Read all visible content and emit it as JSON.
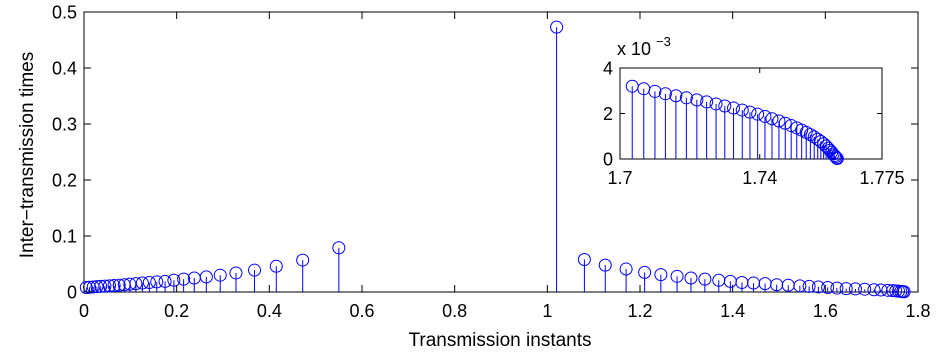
{
  "chart_data": [
    {
      "type": "stem",
      "title": "",
      "xlabel": "Transmission instants",
      "ylabel": "Inter−transmission times",
      "xlim": [
        0,
        1.8
      ],
      "ylim": [
        0,
        0.5
      ],
      "xticks": [
        "0",
        "0.2",
        "0.4",
        "0.6",
        "0.8",
        "1",
        "1.2",
        "1.4",
        "1.6",
        "1.8"
      ],
      "yticks": [
        "0",
        "0.1",
        "0.2",
        "0.3",
        "0.4",
        "0.5"
      ],
      "grid": false,
      "color": "#0000ff",
      "series": [
        {
          "x": [
            0.005,
            0.012,
            0.02,
            0.028,
            0.036,
            0.045,
            0.055,
            0.065,
            0.076,
            0.087,
            0.099,
            0.112,
            0.126,
            0.141,
            0.157,
            0.175,
            0.194,
            0.215,
            0.238,
            0.264,
            0.294,
            0.328,
            0.368,
            0.415,
            0.472,
            0.55,
            1.02,
            1.08,
            1.125,
            1.17,
            1.21,
            1.245,
            1.28,
            1.31,
            1.34,
            1.37,
            1.395,
            1.42,
            1.445,
            1.47,
            1.495,
            1.52,
            1.545,
            1.565,
            1.585,
            1.605,
            1.625,
            1.645,
            1.665,
            1.685,
            1.705,
            1.72,
            1.735,
            1.745,
            1.752,
            1.758,
            1.763,
            1.767,
            1.77
          ],
          "y": [
            0.008,
            0.0085,
            0.009,
            0.0095,
            0.01,
            0.0105,
            0.011,
            0.0115,
            0.012,
            0.013,
            0.014,
            0.015,
            0.016,
            0.017,
            0.018,
            0.019,
            0.021,
            0.023,
            0.025,
            0.027,
            0.03,
            0.034,
            0.039,
            0.046,
            0.057,
            0.079,
            0.473,
            0.058,
            0.048,
            0.041,
            0.035,
            0.031,
            0.028,
            0.025,
            0.023,
            0.021,
            0.019,
            0.017,
            0.016,
            0.015,
            0.013,
            0.012,
            0.011,
            0.01,
            0.009,
            0.008,
            0.007,
            0.006,
            0.0055,
            0.005,
            0.004,
            0.0035,
            0.003,
            0.0025,
            0.002,
            0.0015,
            0.001,
            0.0007,
            0.0004
          ]
        }
      ]
    },
    {
      "type": "stem",
      "title": "",
      "xlabel": "",
      "ylabel": "",
      "xlim": [
        1.7,
        1.775
      ],
      "ylim": [
        0,
        0.004
      ],
      "xticks": [
        "1.7",
        "1.74",
        "1.775"
      ],
      "yticks": [
        "0",
        "2",
        "4"
      ],
      "exponent_label": "x 10",
      "exponent_power": "−3",
      "grid": false,
      "color": "#0000ff",
      "series": [
        {
          "x": [
            1.7035,
            1.7068,
            1.71,
            1.713,
            1.716,
            1.719,
            1.722,
            1.7248,
            1.7275,
            1.73,
            1.7325,
            1.735,
            1.7372,
            1.7394,
            1.7415,
            1.7435,
            1.7455,
            1.7473,
            1.749,
            1.7506,
            1.752,
            1.7533,
            1.7545,
            1.7556,
            1.7566,
            1.7575,
            1.7583,
            1.759,
            1.7596,
            1.7601,
            1.7606,
            1.761,
            1.7614,
            1.7617,
            1.762,
            1.7622
          ],
          "y": [
            0.0032,
            0.00309,
            0.00297,
            0.00287,
            0.00278,
            0.00269,
            0.0026,
            0.00251,
            0.00242,
            0.00233,
            0.00224,
            0.00215,
            0.00206,
            0.00197,
            0.00187,
            0.00177,
            0.00167,
            0.00157,
            0.00147,
            0.00137,
            0.00127,
            0.00117,
            0.00107,
            0.00097,
            0.00087,
            0.00077,
            0.00067,
            0.00057,
            0.00047,
            0.00038,
            0.0003,
            0.00022,
            0.00015,
            0.0001,
            5e-05,
            2e-05
          ]
        }
      ]
    }
  ]
}
